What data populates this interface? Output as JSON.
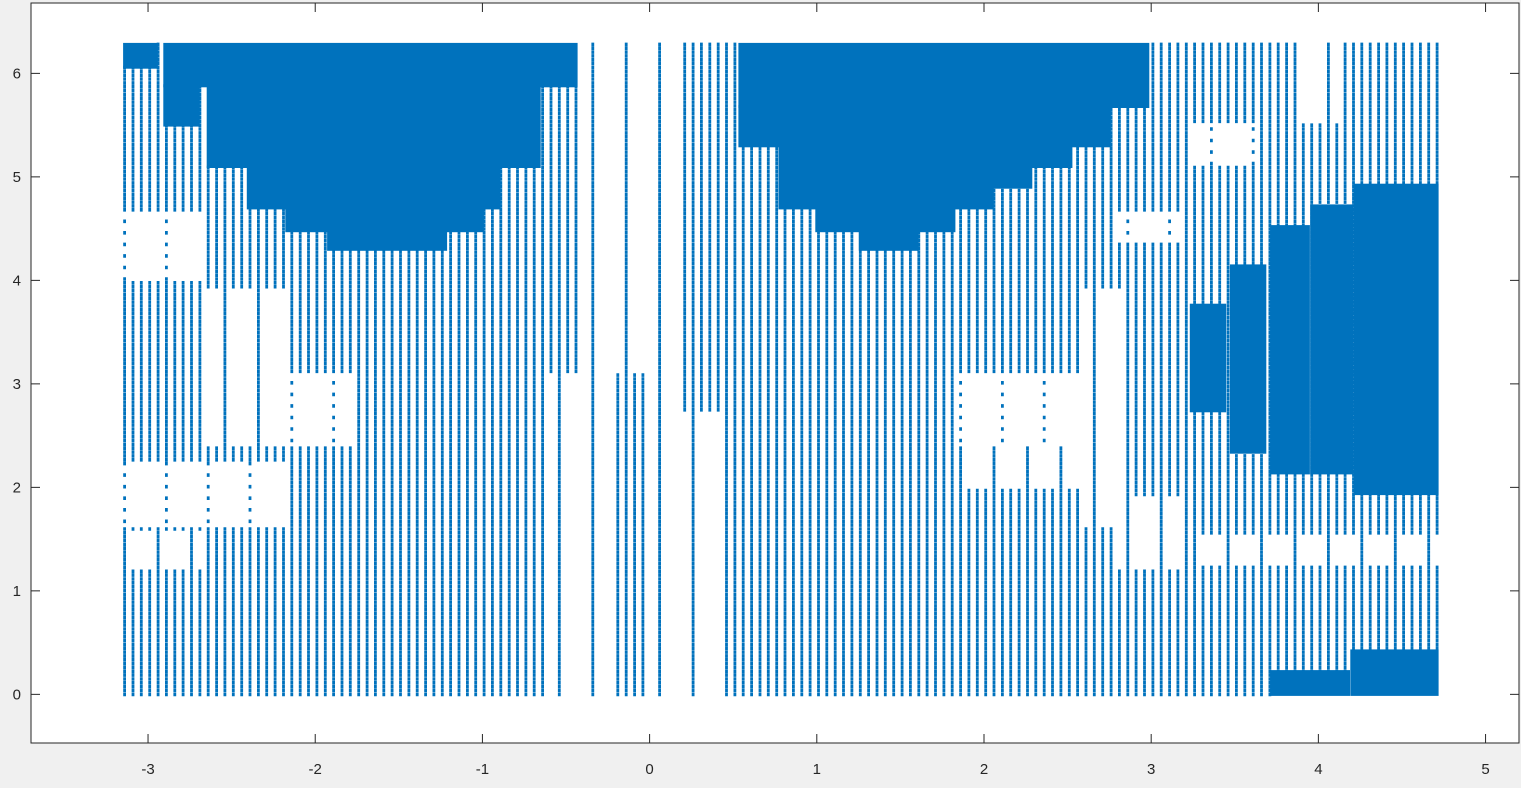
{
  "chart_data": {
    "type": "scatter",
    "title": "",
    "xlabel": "",
    "ylabel": "",
    "xlim": [
      -3.7,
      5.2
    ],
    "ylim": [
      -0.47,
      6.68
    ],
    "xticks": [
      -3,
      -2,
      -1,
      0,
      1,
      2,
      3,
      4,
      5
    ],
    "xtick_labels": [
      "-3",
      "-2",
      "-1",
      "0",
      "1",
      "2",
      "3",
      "4",
      "5"
    ],
    "yticks": [
      0,
      1,
      2,
      3,
      4,
      5,
      6
    ],
    "ytick_labels": [
      "0",
      "1",
      "2",
      "3",
      "4",
      "5",
      "6"
    ],
    "grid": false,
    "marker_color": "#0072BD",
    "x_range": [
      -3.14,
      4.71
    ],
    "y_range": [
      0,
      6.28
    ],
    "grid_points": {
      "nx": 158,
      "ny": 170
    },
    "regions": [
      {
        "x": [
          -3.14,
          -2.95
        ],
        "y": [
          6.06,
          6.28
        ],
        "density": "full"
      },
      {
        "x": [
          -2.9,
          -0.44
        ],
        "y": [
          5.88,
          6.28
        ],
        "density": "full"
      },
      {
        "x": [
          -2.9,
          -2.7
        ],
        "y": [
          5.5,
          5.88
        ],
        "density": "full"
      },
      {
        "x": [
          -2.64,
          -0.66
        ],
        "y": [
          5.1,
          5.88
        ],
        "density": "full"
      },
      {
        "x": [
          -2.4,
          -0.9
        ],
        "y": [
          4.7,
          5.1
        ],
        "density": "full"
      },
      {
        "x": [
          -2.17,
          -1.0
        ],
        "y": [
          4.48,
          4.7
        ],
        "density": "full"
      },
      {
        "x": [
          -1.92,
          -1.22
        ],
        "y": [
          4.3,
          4.48
        ],
        "density": "full"
      },
      {
        "x": [
          0.54,
          2.98
        ],
        "y": [
          5.68,
          6.28
        ],
        "density": "full"
      },
      {
        "x": [
          0.54,
          2.75
        ],
        "y": [
          5.3,
          5.68
        ],
        "density": "full"
      },
      {
        "x": [
          0.78,
          2.52
        ],
        "y": [
          5.1,
          5.3
        ],
        "density": "full"
      },
      {
        "x": [
          0.78,
          2.28
        ],
        "y": [
          4.9,
          5.1
        ],
        "density": "full"
      },
      {
        "x": [
          0.78,
          2.05
        ],
        "y": [
          4.7,
          4.9
        ],
        "density": "full"
      },
      {
        "x": [
          1.0,
          1.82
        ],
        "y": [
          4.48,
          4.7
        ],
        "density": "full"
      },
      {
        "x": [
          1.26,
          1.6
        ],
        "y": [
          4.3,
          4.48
        ],
        "density": "full"
      },
      {
        "x": [
          3.24,
          3.44
        ],
        "y": [
          2.74,
          3.76
        ],
        "density": "full"
      },
      {
        "x": [
          3.48,
          3.68
        ],
        "y": [
          2.34,
          4.14
        ],
        "density": "full"
      },
      {
        "x": [
          3.72,
          3.94
        ],
        "y": [
          2.14,
          4.52
        ],
        "density": "full"
      },
      {
        "x": [
          3.96,
          4.2
        ],
        "y": [
          2.14,
          4.72
        ],
        "density": "full"
      },
      {
        "x": [
          4.22,
          4.71
        ],
        "y": [
          1.94,
          4.92
        ],
        "density": "full"
      },
      {
        "x": [
          3.72,
          4.18
        ],
        "y": [
          0,
          0.22
        ],
        "density": "full"
      },
      {
        "x": [
          4.2,
          4.71
        ],
        "y": [
          0,
          0.42
        ],
        "density": "full"
      }
    ],
    "gaps": [
      {
        "x": [
          -3.14,
          -2.65
        ],
        "y": [
          1.62,
          2.24
        ],
        "kind": "sparse"
      },
      {
        "x": [
          -2.65,
          -2.18
        ],
        "y": [
          1.62,
          2.24
        ],
        "kind": "sparse"
      },
      {
        "x": [
          -3.14,
          -2.65
        ],
        "y": [
          4.0,
          4.68
        ],
        "kind": "sparse"
      },
      {
        "x": [
          -2.18,
          -1.78
        ],
        "y": [
          2.38,
          3.12
        ],
        "kind": "sparse"
      },
      {
        "x": [
          -2.65,
          -2.18
        ],
        "y": [
          2.38,
          3.92
        ],
        "kind": "cols"
      },
      {
        "x": [
          -3.14,
          -2.65
        ],
        "y": [
          1.2,
          1.58
        ],
        "kind": "cols"
      },
      {
        "x": [
          -0.6,
          -0.2
        ],
        "y": [
          0,
          3.1
        ],
        "kind": "cols"
      },
      {
        "x": [
          -0.42,
          -0.02
        ],
        "y": [
          3.1,
          6.28
        ],
        "kind": "cols"
      },
      {
        "x": [
          -0.02,
          0.16
        ],
        "y": [
          0,
          6.28
        ],
        "kind": "cols"
      },
      {
        "x": [
          0.16,
          0.3
        ],
        "y": [
          0,
          2.74
        ],
        "kind": "cols"
      },
      {
        "x": [
          0.3,
          0.5
        ],
        "y": [
          0,
          2.74
        ],
        "kind": "cols"
      },
      {
        "x": [
          1.82,
          2.56
        ],
        "y": [
          2.38,
          3.12
        ],
        "kind": "sparse"
      },
      {
        "x": [
          1.82,
          2.56
        ],
        "y": [
          2.0,
          2.38
        ],
        "kind": "cols"
      },
      {
        "x": [
          2.56,
          2.82
        ],
        "y": [
          1.62,
          3.92
        ],
        "kind": "cols"
      },
      {
        "x": [
          2.8,
          3.2
        ],
        "y": [
          1.2,
          1.92
        ],
        "kind": "cols"
      },
      {
        "x": [
          2.8,
          3.2
        ],
        "y": [
          4.36,
          4.68
        ],
        "kind": "sparse"
      },
      {
        "x": [
          3.24,
          3.62
        ],
        "y": [
          5.12,
          5.5
        ],
        "kind": "sparse"
      },
      {
        "x": [
          3.24,
          4.71
        ],
        "y": [
          1.24,
          1.54
        ],
        "kind": "cols"
      },
      {
        "x": [
          3.84,
          4.12
        ],
        "y": [
          5.52,
          6.28
        ],
        "kind": "cols"
      }
    ]
  }
}
